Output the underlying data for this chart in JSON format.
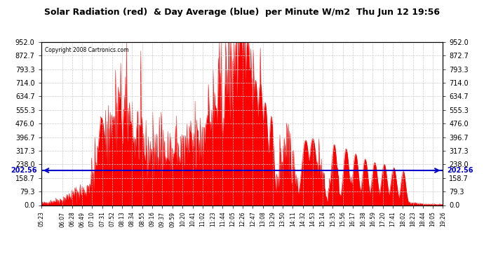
{
  "title": "Solar Radiation (red)  & Day Average (blue)  per Minute W/m2  Thu Jun 12 19:56",
  "copyright": "Copyright 2008 Cartronics.com",
  "y_max": 952.0,
  "y_min": 0.0,
  "day_average": 202.56,
  "yticks": [
    0.0,
    79.3,
    158.7,
    238.0,
    317.3,
    396.7,
    476.0,
    555.3,
    634.7,
    714.0,
    793.3,
    872.7,
    952.0
  ],
  "fill_color": "#FF0000",
  "avg_line_color": "#0000CC",
  "background_color": "#FFFFFF",
  "grid_color": "#CCCCCC",
  "title_color": "#000000",
  "copyright_color": "#000000",
  "xtick_labels": [
    "05:23",
    "06:07",
    "06:28",
    "06:49",
    "07:10",
    "07:31",
    "07:52",
    "08:13",
    "08:34",
    "08:55",
    "09:16",
    "09:37",
    "09:59",
    "10:20",
    "10:41",
    "11:02",
    "11:23",
    "11:44",
    "12:05",
    "12:26",
    "12:47",
    "13:08",
    "13:29",
    "13:50",
    "14:11",
    "14:32",
    "14:53",
    "15:14",
    "15:35",
    "15:56",
    "16:17",
    "16:38",
    "16:59",
    "17:20",
    "17:41",
    "18:02",
    "18:23",
    "18:44",
    "19:05",
    "19:26"
  ]
}
